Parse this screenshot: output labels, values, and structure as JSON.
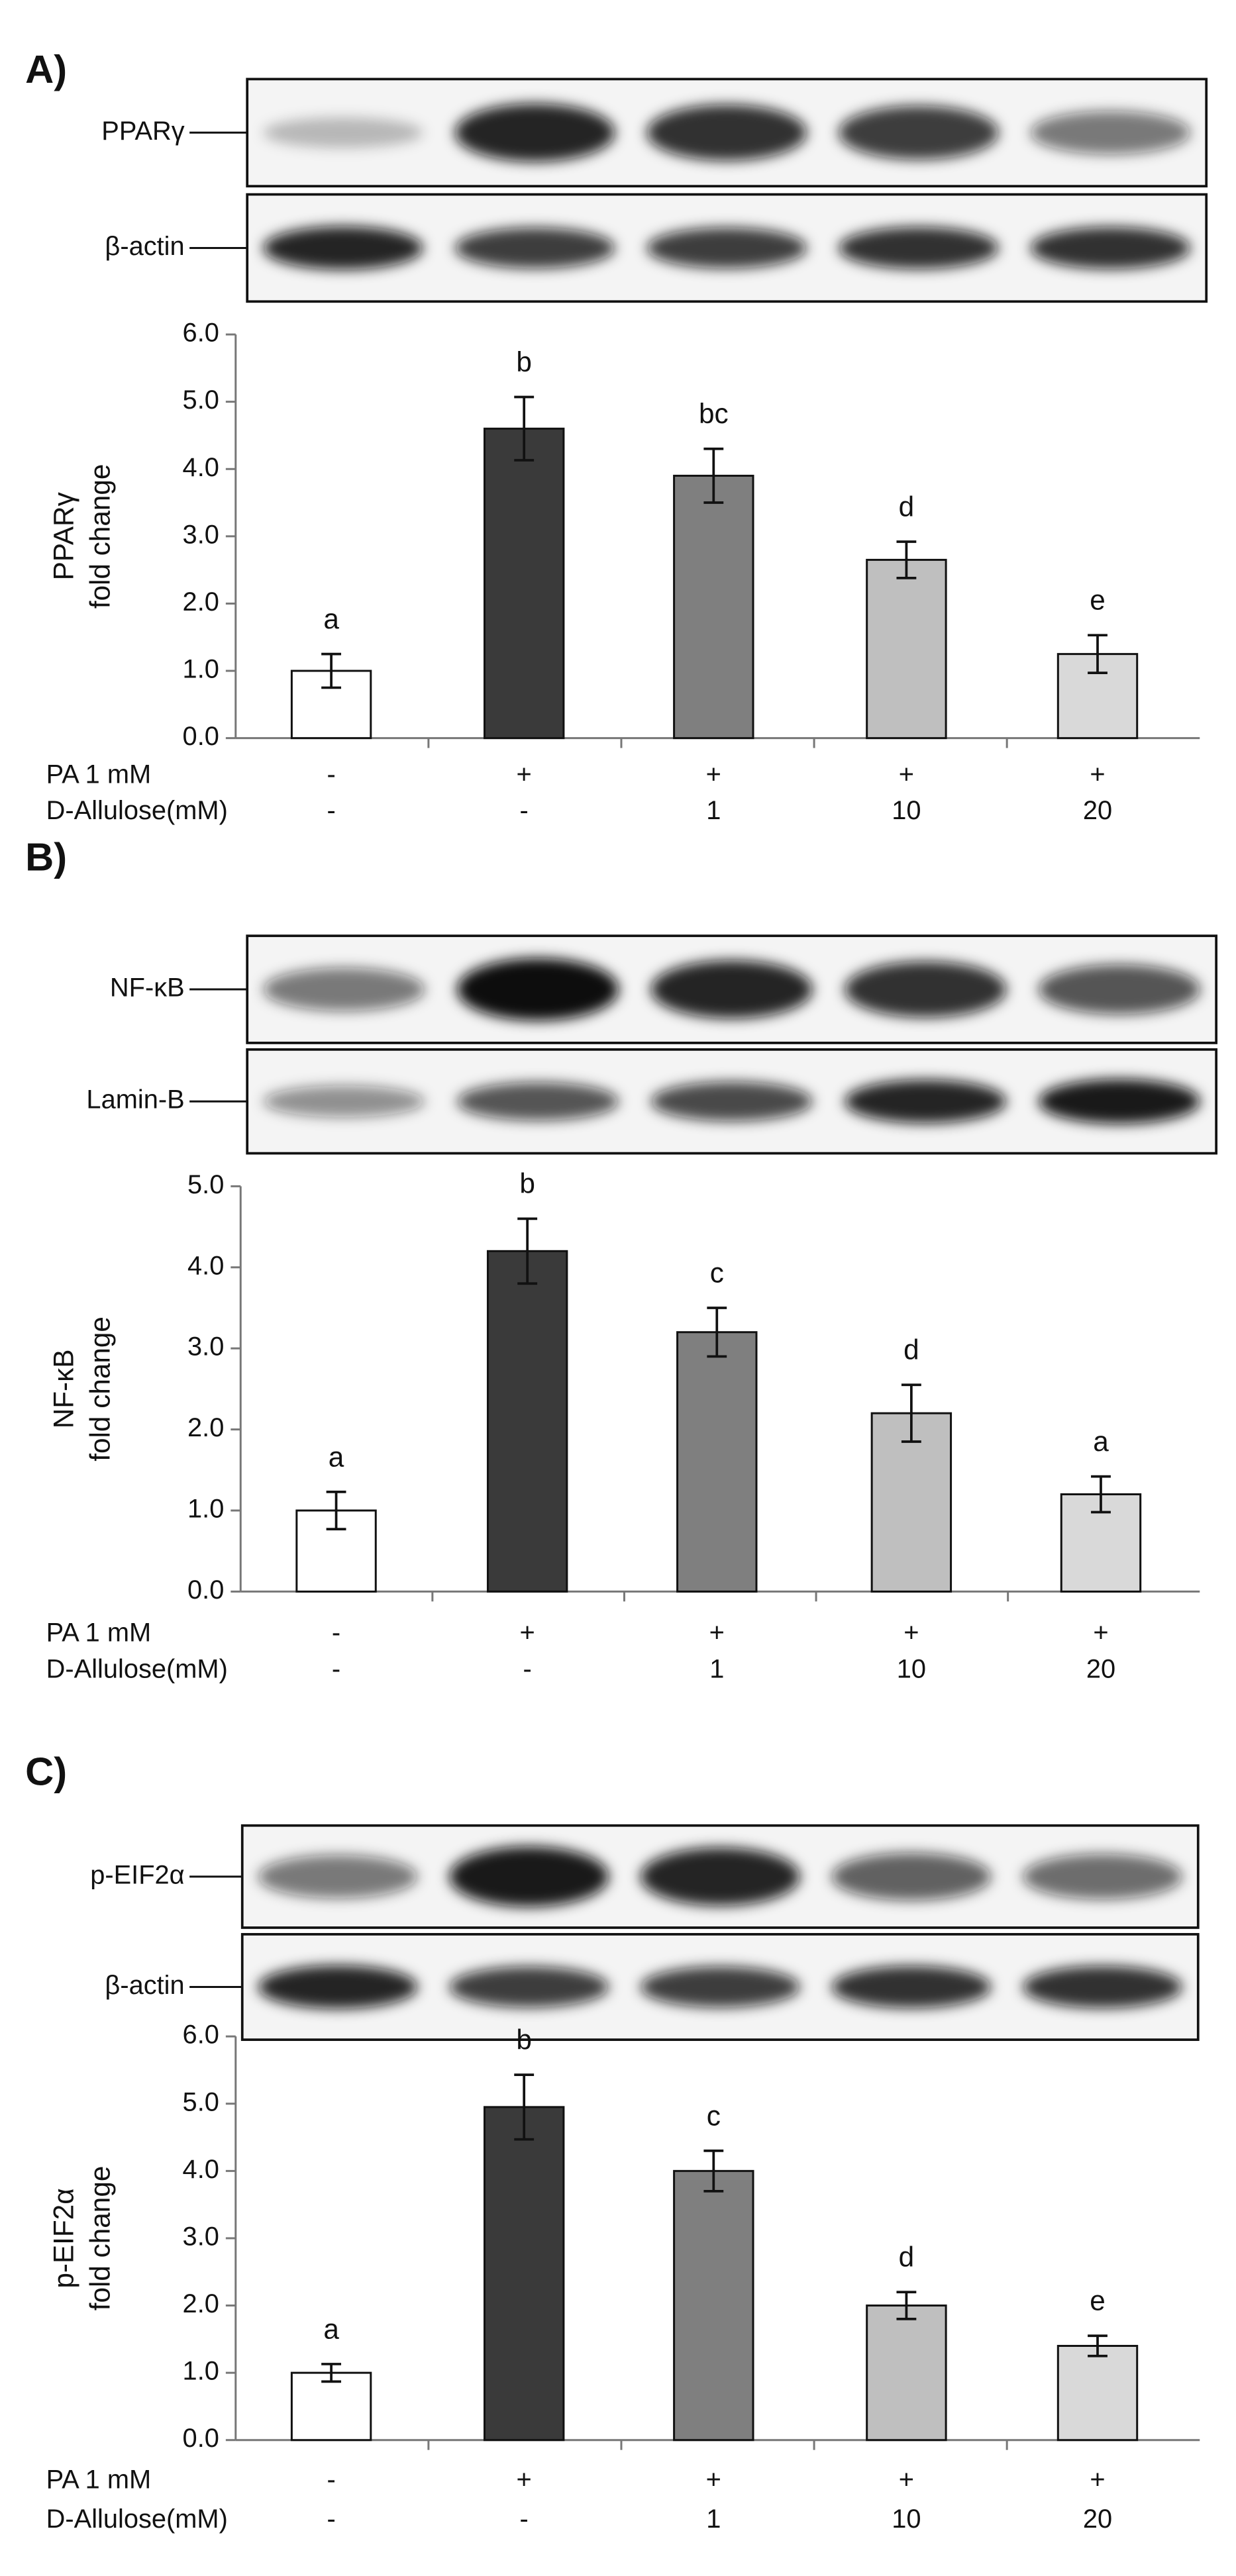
{
  "chart_data": [
    {
      "type": "bar",
      "panel_label": "A)",
      "blot_labels": [
        "PPARγ",
        "β-actin"
      ],
      "y_label": [
        "PPARγ",
        "fold change"
      ],
      "treatment_rows": [
        {
          "name": "PA 1 mM",
          "values": [
            "-",
            "+",
            "+",
            "+",
            "+"
          ]
        },
        {
          "name": "D-Allulose(mM)",
          "values": [
            "-",
            "-",
            "1",
            "10",
            "20"
          ]
        }
      ],
      "values": [
        1.0,
        4.6,
        3.9,
        2.65,
        1.25
      ],
      "errors": [
        0.25,
        0.47,
        0.4,
        0.27,
        0.28
      ],
      "annotations": [
        "a",
        "b",
        "bc",
        "d",
        "e"
      ],
      "colors": [
        "#ffffff",
        "#3a3a3a",
        "#7f7f7f",
        "#bfbfbf",
        "#d9d9d9"
      ],
      "ylim": [
        0,
        6
      ],
      "yticks": [
        {
          "value": 0,
          "label": "0.0"
        },
        {
          "value": 1,
          "label": "1.0"
        },
        {
          "value": 2,
          "label": "2.0"
        },
        {
          "value": 3,
          "label": "3.0"
        },
        {
          "value": 4,
          "label": "4.0"
        },
        {
          "value": 5,
          "label": "5.0"
        },
        {
          "value": 6,
          "label": "6.0"
        }
      ]
    },
    {
      "type": "bar",
      "panel_label": "B)",
      "blot_labels": [
        "NF-κB",
        "Lamin-B"
      ],
      "y_label": [
        "NF-κB",
        "fold change"
      ],
      "treatment_rows": [
        {
          "name": "PA 1 mM",
          "values": [
            "-",
            "+",
            "+",
            "+",
            "+"
          ]
        },
        {
          "name": "D-Allulose(mM)",
          "values": [
            "-",
            "-",
            "1",
            "10",
            "20"
          ]
        }
      ],
      "values": [
        1.0,
        4.2,
        3.2,
        2.2,
        1.2
      ],
      "errors": [
        0.23,
        0.4,
        0.3,
        0.35,
        0.22
      ],
      "annotations": [
        "a",
        "b",
        "c",
        "d",
        "a"
      ],
      "colors": [
        "#ffffff",
        "#3a3a3a",
        "#7f7f7f",
        "#bfbfbf",
        "#d9d9d9"
      ],
      "ylim": [
        0,
        5
      ],
      "yticks": [
        {
          "value": 0,
          "label": "0.0"
        },
        {
          "value": 1,
          "label": "1.0"
        },
        {
          "value": 2,
          "label": "2.0"
        },
        {
          "value": 3,
          "label": "3.0"
        },
        {
          "value": 4,
          "label": "4.0"
        },
        {
          "value": 5,
          "label": "5.0"
        }
      ]
    },
    {
      "type": "bar",
      "panel_label": "C)",
      "blot_labels": [
        "p-EIF2α",
        "β-actin"
      ],
      "y_label": [
        "p-EIF2α",
        "fold change"
      ],
      "treatment_rows": [
        {
          "name": "PA 1 mM",
          "values": [
            "-",
            "+",
            "+",
            "+",
            "+"
          ]
        },
        {
          "name": "D-Allulose(mM)",
          "values": [
            "-",
            "-",
            "1",
            "10",
            "20"
          ]
        }
      ],
      "values": [
        1.0,
        4.95,
        4.0,
        2.0,
        1.4
      ],
      "errors": [
        0.13,
        0.48,
        0.3,
        0.2,
        0.15
      ],
      "annotations": [
        "a",
        "b",
        "c",
        "d",
        "e"
      ],
      "colors": [
        "#ffffff",
        "#3a3a3a",
        "#7f7f7f",
        "#bfbfbf",
        "#d9d9d9"
      ],
      "ylim": [
        0,
        6
      ],
      "yticks": [
        {
          "value": 0,
          "label": "0.0"
        },
        {
          "value": 1,
          "label": "1.0"
        },
        {
          "value": 2,
          "label": "2.0"
        },
        {
          "value": 3,
          "label": "3.0"
        },
        {
          "value": 4,
          "label": "4.0"
        },
        {
          "value": 5,
          "label": "5.0"
        },
        {
          "value": 6,
          "label": "6.0"
        }
      ]
    }
  ]
}
